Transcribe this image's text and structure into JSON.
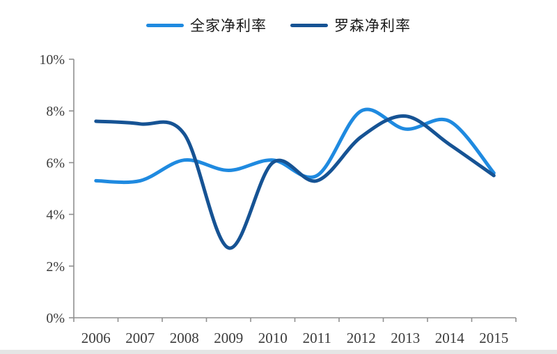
{
  "chart_data": {
    "type": "line",
    "title": "",
    "categories": [
      "2006",
      "2007",
      "2008",
      "2009",
      "2010",
      "2011",
      "2012",
      "2013",
      "2014",
      "2015"
    ],
    "series": [
      {
        "name": "全家净利率",
        "color": "#1F8AE0",
        "values": [
          5.3,
          5.3,
          6.1,
          5.7,
          6.1,
          5.5,
          8.0,
          7.3,
          7.6,
          5.6
        ]
      },
      {
        "name": "罗森净利率",
        "color": "#165394",
        "values": [
          7.6,
          7.5,
          7.1,
          2.7,
          6.0,
          5.3,
          7.0,
          7.8,
          6.7,
          5.5
        ]
      }
    ],
    "xlabel": "",
    "ylabel": "",
    "ylim": [
      0,
      10
    ],
    "ytick_step": 2,
    "ytick_labels": [
      "0%",
      "2%",
      "4%",
      "6%",
      "8%",
      "10%"
    ],
    "grid": false,
    "smooth": true,
    "legend_position": "top",
    "axis_color": "#8f8f8f",
    "tick_label_color": "#3b3b3b"
  }
}
